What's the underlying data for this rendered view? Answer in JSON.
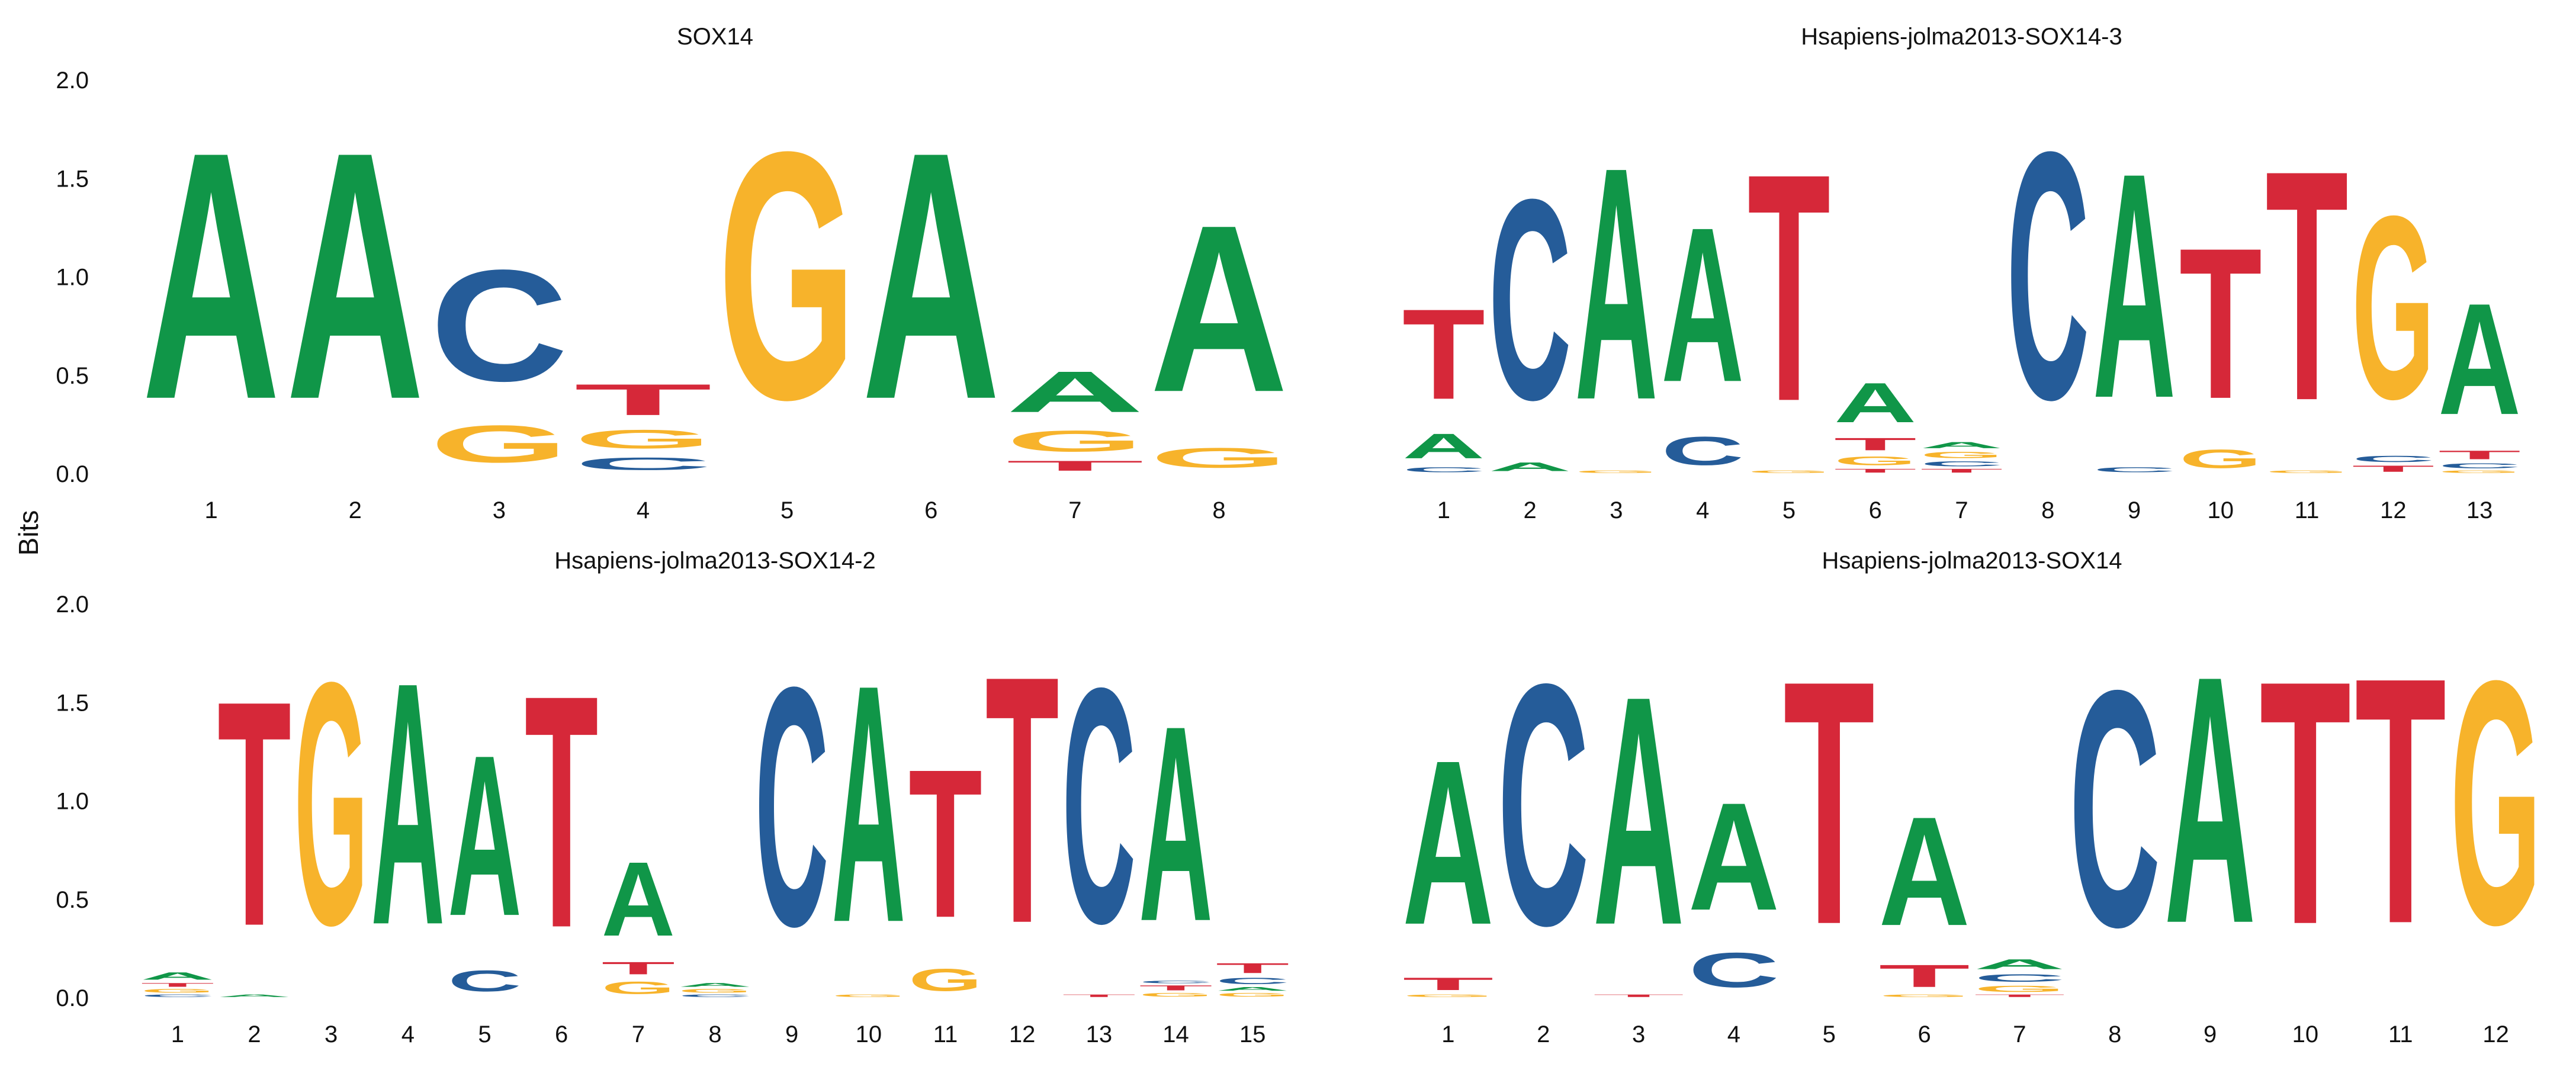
{
  "figure": {
    "ylabel": "Bits"
  },
  "colors": {
    "A": "#109648",
    "C": "#255C99",
    "G": "#F7B32B",
    "T": "#D62839"
  },
  "chart_data": [
    {
      "type": "sequence-logo",
      "title": "SOX14",
      "ylim": [
        0,
        2
      ],
      "yticks": [
        "0.0",
        "0.5",
        "1.0",
        "1.5",
        "2.0"
      ],
      "positions": [
        {
          "label": "1",
          "letters": [
            [
              "A",
              2.0
            ]
          ]
        },
        {
          "label": "2",
          "letters": [
            [
              "A",
              2.0
            ]
          ]
        },
        {
          "label": "3",
          "letters": [
            [
              "G",
              0.3
            ],
            [
              "C",
              0.9
            ]
          ]
        },
        {
          "label": "4",
          "letters": [
            [
              "C",
              0.1
            ],
            [
              "G",
              0.15
            ],
            [
              "T",
              0.25
            ]
          ]
        },
        {
          "label": "5",
          "letters": [
            [
              "G",
              2.0
            ]
          ]
        },
        {
          "label": "6",
          "letters": [
            [
              "A",
              2.0
            ]
          ]
        },
        {
          "label": "7",
          "letters": [
            [
              "T",
              0.08
            ],
            [
              "G",
              0.17
            ],
            [
              "A",
              0.33
            ]
          ]
        },
        {
          "label": "8",
          "letters": [
            [
              "G",
              0.16
            ],
            [
              "A",
              1.35
            ]
          ]
        }
      ]
    },
    {
      "type": "sequence-logo",
      "title": "Hsapiens-jolma2013-SOX14-3",
      "ylim": [
        0,
        2
      ],
      "yticks": [
        "0.0",
        "0.5",
        "1.0",
        "1.5",
        "2.0"
      ],
      "positions": [
        {
          "label": "1",
          "letters": [
            [
              "C",
              0.04
            ],
            [
              "A",
              0.2
            ],
            [
              "T",
              0.73
            ]
          ]
        },
        {
          "label": "2",
          "letters": [
            [
              "A",
              0.07
            ],
            [
              "C",
              1.62
            ]
          ]
        },
        {
          "label": "3",
          "letters": [
            [
              "G",
              0.02
            ],
            [
              "A",
              1.88
            ]
          ]
        },
        {
          "label": "4",
          "letters": [
            [
              "C",
              0.23
            ],
            [
              "A",
              1.25
            ]
          ]
        },
        {
          "label": "5",
          "letters": [
            [
              "G",
              0.02
            ],
            [
              "T",
              1.84
            ]
          ]
        },
        {
          "label": "6",
          "letters": [
            [
              "T",
              0.03
            ],
            [
              "G",
              0.07
            ],
            [
              "T",
              0.1
            ],
            [
              "A",
              0.32
            ]
          ]
        },
        {
          "label": "7",
          "letters": [
            [
              "T",
              0.03
            ],
            [
              "C",
              0.04
            ],
            [
              "G",
              0.05
            ],
            [
              "A",
              0.05
            ]
          ]
        },
        {
          "label": "8",
          "letters": [
            [
              "C",
              2.0
            ]
          ]
        },
        {
          "label": "9",
          "letters": [
            [
              "C",
              0.04
            ],
            [
              "A",
              1.82
            ]
          ]
        },
        {
          "label": "10",
          "letters": [
            [
              "G",
              0.15
            ],
            [
              "T",
              1.22
            ]
          ]
        },
        {
          "label": "11",
          "letters": [
            [
              "G",
              0.02
            ],
            [
              "T",
              1.86
            ]
          ]
        },
        {
          "label": "12",
          "letters": [
            [
              "T",
              0.05
            ],
            [
              "C",
              0.05
            ],
            [
              "G",
              1.48
            ]
          ]
        },
        {
          "label": "13",
          "letters": [
            [
              "G",
              0.02
            ],
            [
              "C",
              0.04
            ],
            [
              "T",
              0.07
            ],
            [
              "A",
              0.9
            ]
          ]
        }
      ]
    },
    {
      "type": "sequence-logo",
      "title": "Hsapiens-jolma2013-SOX14-2",
      "ylim": [
        0,
        2
      ],
      "yticks": [
        "0.0",
        "0.5",
        "1.0",
        "1.5",
        "2.0"
      ],
      "positions": [
        {
          "label": "1",
          "letters": [
            [
              "C",
              0.02
            ],
            [
              "G",
              0.03
            ],
            [
              "T",
              0.03
            ],
            [
              "A",
              0.06
            ]
          ]
        },
        {
          "label": "2",
          "letters": [
            [
              "A",
              0.02
            ],
            [
              "T",
              1.82
            ]
          ]
        },
        {
          "label": "3",
          "letters": [
            [
              "G",
              1.96
            ]
          ]
        },
        {
          "label": "4",
          "letters": [
            [
              "A",
              1.96
            ]
          ]
        },
        {
          "label": "5",
          "letters": [
            [
              "C",
              0.17
            ],
            [
              "A",
              1.3
            ]
          ]
        },
        {
          "label": "6",
          "letters": [
            [
              "T",
              1.88
            ]
          ]
        },
        {
          "label": "7",
          "letters": [
            [
              "G",
              0.1
            ],
            [
              "T",
              0.1
            ],
            [
              "A",
              0.6
            ]
          ]
        },
        {
          "label": "8",
          "letters": [
            [
              "C",
              0.02
            ],
            [
              "G",
              0.03
            ],
            [
              "A",
              0.03
            ]
          ]
        },
        {
          "label": "9",
          "letters": [
            [
              "C",
              1.93
            ]
          ]
        },
        {
          "label": "10",
          "letters": [
            [
              "G",
              0.02
            ],
            [
              "A",
              1.92
            ]
          ]
        },
        {
          "label": "11",
          "letters": [
            [
              "G",
              0.18
            ],
            [
              "T",
              1.2
            ]
          ]
        },
        {
          "label": "12",
          "letters": [
            [
              "T",
              2.0
            ]
          ]
        },
        {
          "label": "13",
          "letters": [
            [
              "T",
              0.02
            ],
            [
              "C",
              1.9
            ]
          ]
        },
        {
          "label": "14",
          "letters": [
            [
              "G",
              0.03
            ],
            [
              "T",
              0.04
            ],
            [
              "C",
              0.02
            ],
            [
              "A",
              1.58
            ]
          ]
        },
        {
          "label": "15",
          "letters": [
            [
              "G",
              0.03
            ],
            [
              "A",
              0.03
            ],
            [
              "C",
              0.05
            ],
            [
              "T",
              0.08
            ]
          ]
        }
      ]
    },
    {
      "type": "sequence-logo",
      "title": "Hsapiens-jolma2013-SOX14",
      "ylim": [
        0,
        2
      ],
      "yticks": [
        "0.0",
        "0.5",
        "1.0",
        "1.5",
        "2.0"
      ],
      "positions": [
        {
          "label": "1",
          "letters": [
            [
              "G",
              0.02
            ],
            [
              "T",
              0.1
            ],
            [
              "A",
              1.33
            ]
          ]
        },
        {
          "label": "2",
          "letters": [
            [
              "C",
              1.95
            ]
          ]
        },
        {
          "label": "3",
          "letters": [
            [
              "T",
              0.02
            ],
            [
              "A",
              1.85
            ]
          ]
        },
        {
          "label": "4",
          "letters": [
            [
              "C",
              0.28
            ],
            [
              "A",
              0.87
            ]
          ]
        },
        {
          "label": "5",
          "letters": [
            [
              "T",
              1.97
            ]
          ]
        },
        {
          "label": "6",
          "letters": [
            [
              "G",
              0.02
            ],
            [
              "T",
              0.18
            ],
            [
              "A",
              0.88
            ]
          ]
        },
        {
          "label": "7",
          "letters": [
            [
              "T",
              0.02
            ],
            [
              "G",
              0.05
            ],
            [
              "C",
              0.06
            ],
            [
              "A",
              0.08
            ]
          ]
        },
        {
          "label": "8",
          "letters": [
            [
              "C",
              1.91
            ]
          ]
        },
        {
          "label": "9",
          "letters": [
            [
              "A",
              2.0
            ]
          ]
        },
        {
          "label": "10",
          "letters": [
            [
              "T",
              1.97
            ]
          ]
        },
        {
          "label": "11",
          "letters": [
            [
              "T",
              1.99
            ]
          ]
        },
        {
          "label": "12",
          "letters": [
            [
              "G",
              1.97
            ]
          ]
        }
      ]
    }
  ]
}
